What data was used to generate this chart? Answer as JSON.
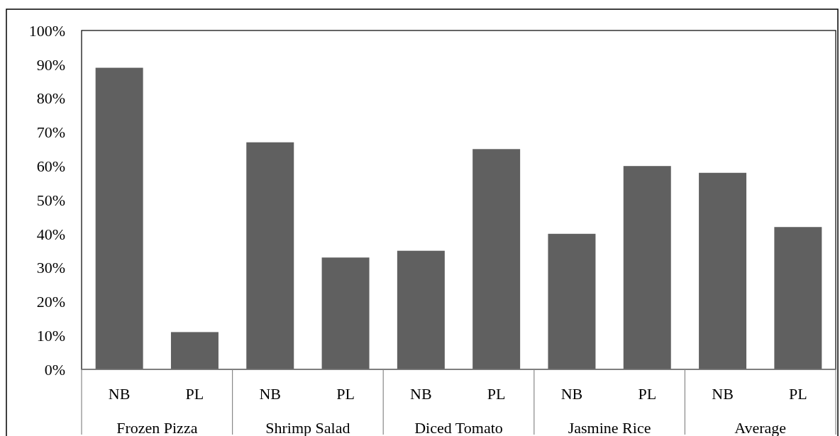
{
  "chart_data": {
    "type": "bar",
    "categories": [
      "Frozen Pizza",
      "Shrimp Salad",
      "Diced Tomato",
      "Jasmine Rice",
      "Average"
    ],
    "series": [
      {
        "name": "NB",
        "color": "#606060",
        "values": [
          89,
          67,
          35,
          40,
          58
        ]
      },
      {
        "name": "PL",
        "color": "#606060",
        "values": [
          11,
          33,
          65,
          60,
          42
        ]
      }
    ],
    "ylim": [
      0,
      100
    ],
    "yticks": [
      {
        "value": 0,
        "label": "0%"
      },
      {
        "value": 10,
        "label": "10%"
      },
      {
        "value": 20,
        "label": "20%"
      },
      {
        "value": 30,
        "label": "30%"
      },
      {
        "value": 40,
        "label": "40%"
      },
      {
        "value": 50,
        "label": "50%"
      },
      {
        "value": 60,
        "label": "60%"
      },
      {
        "value": 70,
        "label": "70%"
      },
      {
        "value": 80,
        "label": "80%"
      },
      {
        "value": 90,
        "label": "90%"
      },
      {
        "value": 100,
        "label": "100%"
      }
    ],
    "grid": false
  }
}
